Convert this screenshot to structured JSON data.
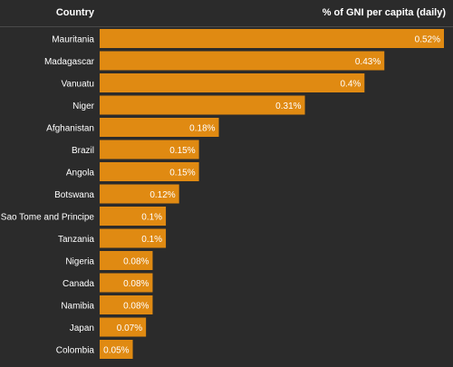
{
  "header": {
    "country_label": "Country",
    "metric_label": "% of GNI per capita (daily)"
  },
  "colors": {
    "background": "#2b2b2b",
    "bar": "#e08a12",
    "text": "#ffffff",
    "divider": "#4a4a4a"
  },
  "chart_data": {
    "type": "bar",
    "orientation": "horizontal",
    "categories": [
      "Mauritania",
      "Madagascar",
      "Vanuatu",
      "Niger",
      "Afghanistan",
      "Brazil",
      "Angola",
      "Botswana",
      "Sao Tome and Principe",
      "Tanzania",
      "Nigeria",
      "Canada",
      "Namibia",
      "Japan",
      "Colombia"
    ],
    "values": [
      0.52,
      0.43,
      0.4,
      0.31,
      0.18,
      0.15,
      0.15,
      0.12,
      0.1,
      0.1,
      0.08,
      0.08,
      0.08,
      0.07,
      0.05
    ],
    "labels": [
      "0.52%",
      "0.43%",
      "0.4%",
      "0.31%",
      "0.18%",
      "0.15%",
      "0.15%",
      "0.12%",
      "0.1%",
      "0.1%",
      "0.08%",
      "0.08%",
      "0.08%",
      "0.07%",
      "0.05%"
    ],
    "xlim": [
      0,
      0.52
    ],
    "grid": false,
    "legend": "none"
  }
}
